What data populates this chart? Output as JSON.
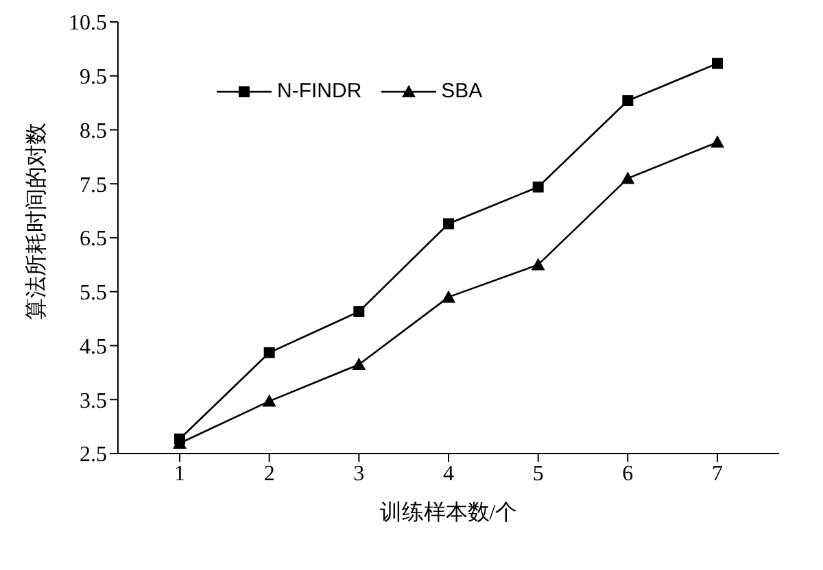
{
  "chart_data": {
    "type": "line",
    "xlabel": "训练样本数/个",
    "ylabel": "算法所耗时间的对数",
    "categories": [
      "1",
      "2",
      "3",
      "4",
      "5",
      "6",
      "7"
    ],
    "series": [
      {
        "name": "N-FINDR",
        "color": "#000000",
        "marker": "square",
        "values": [
          2.77,
          4.37,
          5.13,
          6.76,
          7.44,
          9.04,
          9.73
        ]
      },
      {
        "name": "SBA",
        "color": "#000000",
        "marker": "triangle",
        "values": [
          2.69,
          3.47,
          4.15,
          5.4,
          6.0,
          7.6,
          8.27
        ]
      }
    ],
    "ylim": [
      2.5,
      10.5
    ],
    "yticks": [
      2.5,
      3.5,
      4.5,
      5.5,
      6.5,
      7.5,
      8.5,
      9.5,
      10.5
    ],
    "grid": false,
    "legend": "top left",
    "line_style": "solid"
  }
}
